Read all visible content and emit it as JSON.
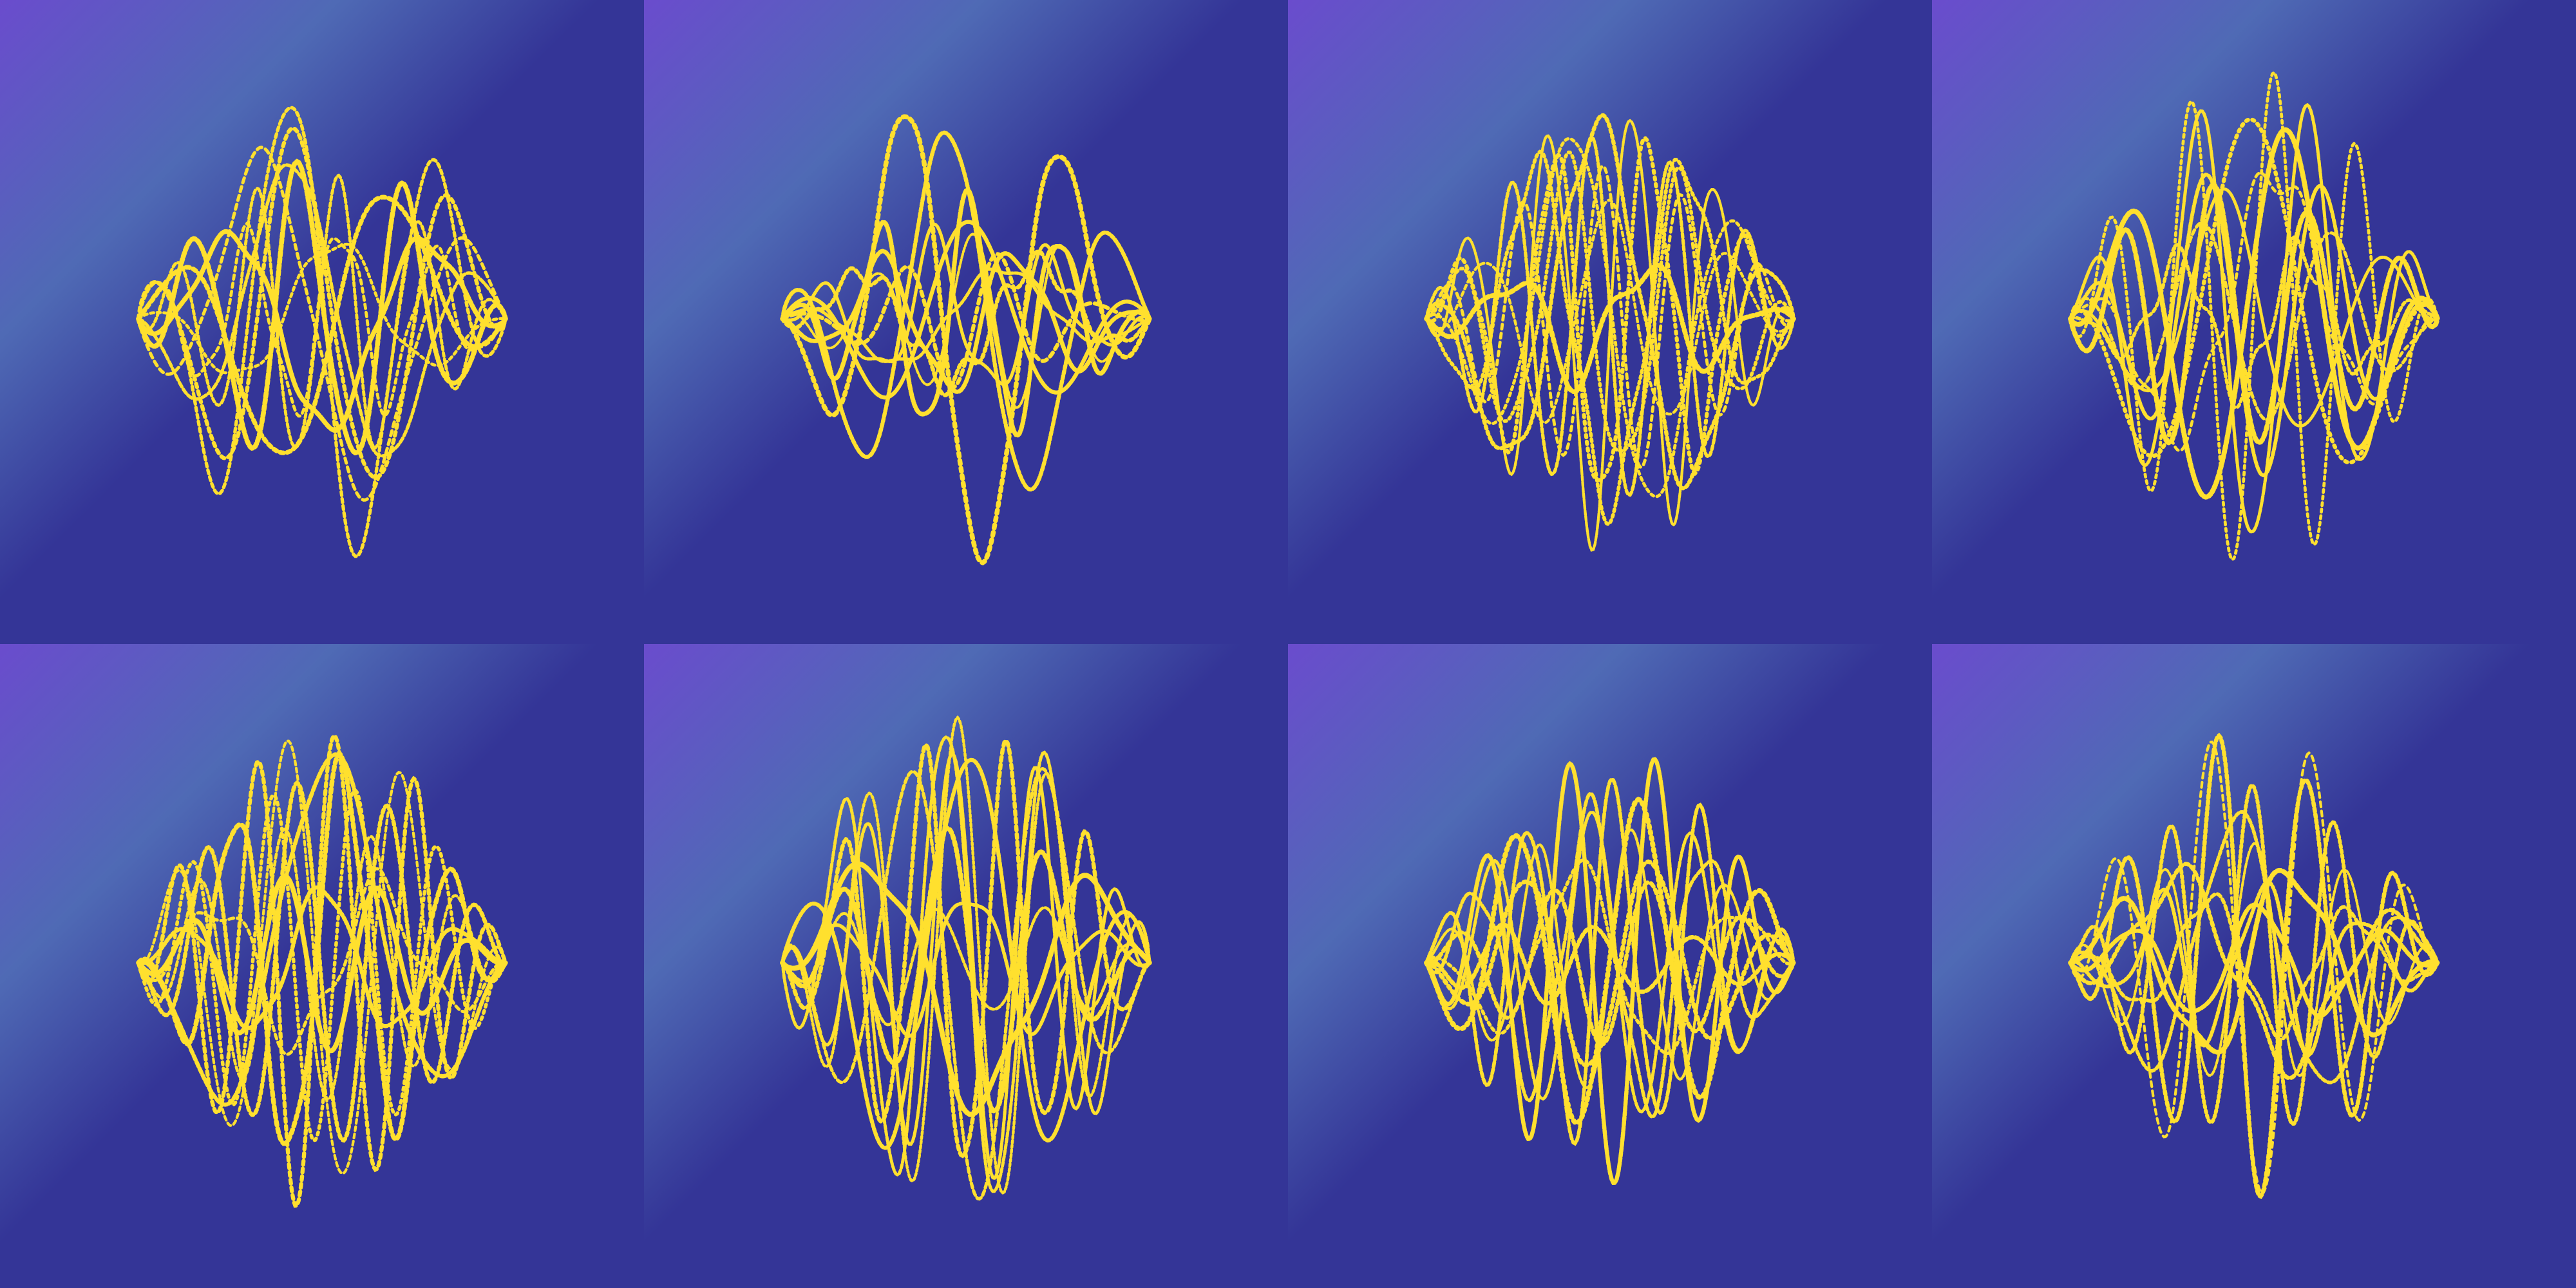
{
  "colors": {
    "gradient_corner": "#6a4ccd",
    "gradient_highlight": "#4f6ab5",
    "gradient_base": "#343597",
    "curve": "#ffe02e"
  },
  "tiles": [
    {
      "variant": 1
    },
    {
      "variant": 2
    },
    {
      "variant": 3
    },
    {
      "variant": 4
    },
    {
      "variant": 5
    },
    {
      "variant": 6
    },
    {
      "variant": 7
    },
    {
      "variant": 8
    }
  ]
}
